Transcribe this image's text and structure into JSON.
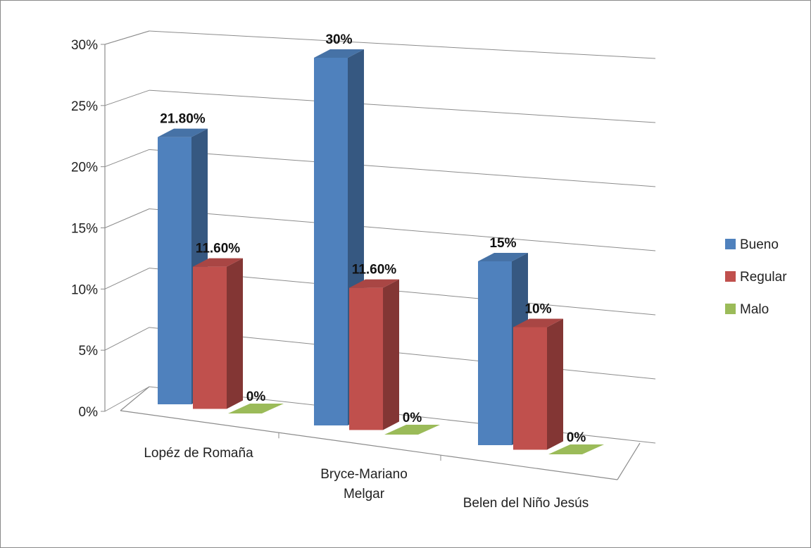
{
  "chart_data": {
    "type": "bar",
    "title": "",
    "xlabel": "",
    "ylabel": "",
    "ylim": [
      0,
      30
    ],
    "yticks": [
      "0%",
      "5%",
      "10%",
      "15%",
      "20%",
      "25%",
      "30%"
    ],
    "categories": [
      "Lopéz de Romaña",
      "Bryce-Mariano Melgar",
      "Belen del Niño Jesús"
    ],
    "series": [
      {
        "name": "Bueno",
        "color": "#4f81bd",
        "values": [
          21.8,
          30,
          15
        ],
        "labels": [
          "21.80%",
          "30%",
          "15%"
        ]
      },
      {
        "name": "Regular",
        "color": "#c0504d",
        "values": [
          11.6,
          11.6,
          10
        ],
        "labels": [
          "11.60%",
          "11.60%",
          "10%"
        ]
      },
      {
        "name": "Malo",
        "color": "#9bbb59",
        "values": [
          0,
          0,
          0
        ],
        "labels": [
          "0%",
          "0%",
          "0%"
        ]
      }
    ],
    "grid": true,
    "legend": "right",
    "style": "3d-clustered-column"
  }
}
